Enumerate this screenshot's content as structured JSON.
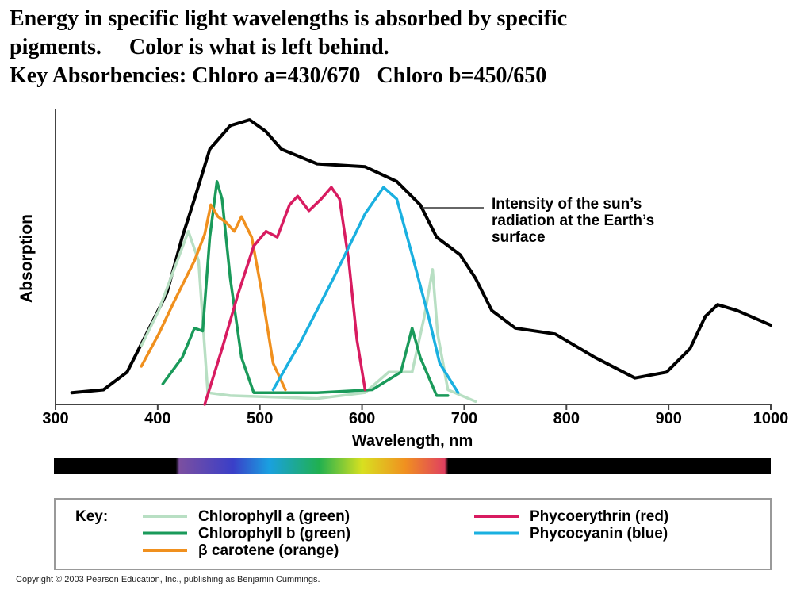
{
  "title_lines": [
    "Energy in specific light wavelengths is absorbed by specific",
    "pigments.     Color is what is left behind.",
    "Key Absorbencies: Chloro a=430/670   Chloro b=450/650"
  ],
  "chart_data": {
    "type": "line",
    "y_label": "Absorption",
    "x_label": "Wavelength, nm",
    "xlim": [
      300,
      1000
    ],
    "xticks": [
      300,
      400,
      500,
      600,
      700,
      800,
      900,
      1000
    ],
    "ylim": [
      0,
      100
    ],
    "legend_title": "Key:",
    "reference_line": {
      "label_lines": [
        "Intensity of the sun’s",
        "radiation at the Earth’s",
        "surface"
      ],
      "color": "#000000",
      "x": [
        316,
        347,
        370,
        389,
        409,
        424,
        436,
        451,
        471,
        490,
        506,
        521,
        556,
        603,
        634,
        657,
        673,
        696,
        711,
        727,
        750,
        789,
        828,
        867,
        898,
        921,
        936,
        948,
        967,
        1000
      ],
      "values": [
        4,
        5,
        11,
        24,
        38,
        57,
        70,
        87,
        95,
        97,
        93,
        87,
        82,
        81,
        76,
        68,
        57,
        51,
        43,
        32,
        26,
        24,
        16,
        9,
        11,
        19,
        30,
        34,
        32,
        27
      ]
    },
    "series": [
      {
        "name": "Chlorophyll a (green)",
        "color": "#b8dfc3",
        "x": [
          384,
          401,
          416,
          430,
          440,
          449,
          471,
          556,
          603,
          626,
          649,
          661,
          669,
          674,
          684,
          711
        ],
        "values": [
          20,
          32,
          46,
          59,
          49,
          4,
          3,
          2,
          4,
          11,
          11,
          30,
          46,
          24,
          5,
          1
        ]
      },
      {
        "name": "Chlorophyll b (green)",
        "color": "#1a9a5a",
        "x": [
          405,
          424,
          436,
          444,
          451,
          458,
          463,
          471,
          482,
          494,
          556,
          610,
          638,
          649,
          657,
          673,
          684
        ],
        "values": [
          7,
          16,
          26,
          25,
          57,
          76,
          70,
          43,
          16,
          4,
          4,
          5,
          11,
          26,
          16,
          3,
          3
        ]
      },
      {
        "name": "β carotene (orange)",
        "color": "#f0901e",
        "x": [
          384,
          401,
          416,
          436,
          446,
          452,
          459,
          467,
          475,
          482,
          492,
          502,
          513,
          525
        ],
        "values": [
          13,
          24,
          35,
          49,
          58,
          68,
          64,
          62,
          59,
          64,
          57,
          38,
          14,
          5
        ]
      },
      {
        "name": "Phycoerythrin (red)",
        "color": "#d81b60",
        "x": [
          446,
          463,
          479,
          494,
          506,
          517,
          529,
          537,
          548,
          560,
          570,
          578,
          587,
          595,
          603
        ],
        "values": [
          0,
          19,
          38,
          54,
          59,
          57,
          68,
          71,
          66,
          70,
          74,
          70,
          49,
          22,
          5
        ]
      },
      {
        "name": "Phycocyanin (blue)",
        "color": "#1ab0e0",
        "x": [
          513,
          541,
          572,
          603,
          621,
          634,
          649,
          665,
          676,
          694
        ],
        "values": [
          5,
          22,
          43,
          65,
          74,
          70,
          51,
          30,
          14,
          4
        ]
      }
    ]
  },
  "copyright": "Copyright © 2003 Pearson Education, Inc., publishing as Benjamin Cummings."
}
